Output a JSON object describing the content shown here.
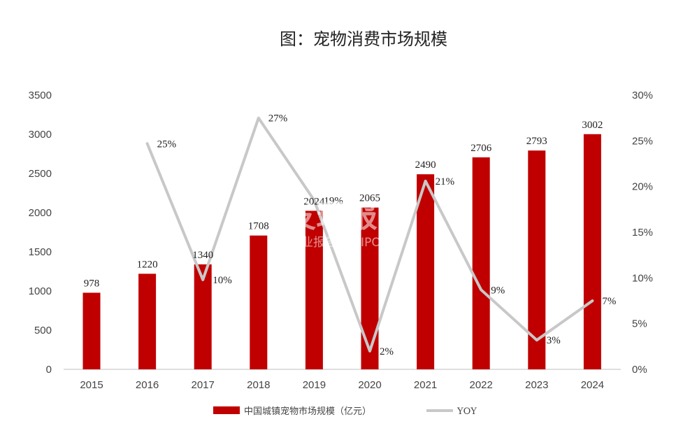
{
  "chart_data": {
    "type": "bar",
    "title": "图：宠物消费市场规模",
    "categories": [
      "2015",
      "2016",
      "2017",
      "2018",
      "2019",
      "2020",
      "2021",
      "2022",
      "2023",
      "2024"
    ],
    "series": [
      {
        "name": "中国城镇宠物市场规模（亿元）",
        "type": "bar",
        "axis": "left",
        "color": "#c00000",
        "values": [
          978,
          1220,
          1340,
          1708,
          2024,
          2065,
          2490,
          2706,
          2793,
          3002
        ],
        "labels": [
          "978",
          "1220",
          "1340",
          "1708",
          "2024",
          "2065",
          "2490",
          "2706",
          "2793",
          "3002"
        ]
      },
      {
        "name": "YOY",
        "type": "line",
        "axis": "right",
        "color": "#c8c8c8",
        "values": [
          null,
          24.7,
          9.8,
          27.5,
          18.5,
          2.0,
          20.6,
          8.7,
          3.2,
          7.5
        ],
        "labels": [
          "",
          "25%",
          "10%",
          "27%",
          "19%",
          "2%",
          "21%",
          "9%",
          "3%",
          "7%"
        ]
      }
    ],
    "y_left": {
      "min": 0,
      "max": 3500,
      "ticks": [
        "0",
        "500",
        "1000",
        "1500",
        "2000",
        "2500",
        "3000",
        "3500"
      ]
    },
    "y_right": {
      "min": 0,
      "max": 30,
      "ticks": [
        "0%",
        "5%",
        "10%",
        "15%",
        "20%",
        "25%",
        "30%"
      ]
    },
    "grid": false,
    "legend_position": "bottom"
  },
  "watermark": {
    "main": "发现报告",
    "sub": "行业报告 IPOIPO.CN"
  }
}
